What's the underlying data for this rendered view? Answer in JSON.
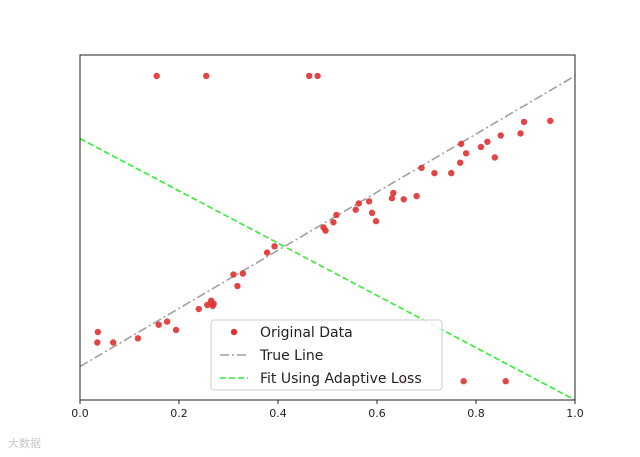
{
  "chart_data": {
    "type": "scatter",
    "title": "",
    "xlabel": "",
    "ylabel": "",
    "xlim": [
      0.0,
      1.0
    ],
    "ylim": [
      -0.6,
      2.7
    ],
    "xticks": [
      "0.0",
      "0.2",
      "0.4",
      "0.6",
      "0.8",
      "1.0"
    ],
    "yticks_visible": false,
    "grid": false,
    "legend": {
      "placement": "lower-center",
      "entries": [
        "Original Data",
        "True Line",
        "Fit Using Adaptive Loss"
      ]
    },
    "series": [
      {
        "name": "Original Data",
        "kind": "scatter",
        "color": "#e03030",
        "x": [
          0.035,
          0.036,
          0.067,
          0.117,
          0.159,
          0.176,
          0.194,
          0.24,
          0.257,
          0.265,
          0.268,
          0.27,
          0.31,
          0.318,
          0.329,
          0.378,
          0.393,
          0.492,
          0.496,
          0.512,
          0.518,
          0.557,
          0.563,
          0.584,
          0.59,
          0.598,
          0.63,
          0.633,
          0.654,
          0.68,
          0.69,
          0.716,
          0.75,
          0.768,
          0.77,
          0.78,
          0.81,
          0.823,
          0.838,
          0.85,
          0.89,
          0.897,
          0.95,
          0.155,
          0.255,
          0.463,
          0.48,
          0.655,
          0.775,
          0.86
        ],
        "y": [
          -0.05,
          0.05,
          -0.05,
          -0.01,
          0.12,
          0.15,
          0.07,
          0.27,
          0.31,
          0.35,
          0.3,
          0.32,
          0.6,
          0.49,
          0.61,
          0.81,
          0.87,
          1.05,
          1.02,
          1.1,
          1.17,
          1.22,
          1.28,
          1.3,
          1.19,
          1.11,
          1.33,
          1.38,
          1.32,
          1.35,
          1.62,
          1.57,
          1.57,
          1.67,
          1.85,
          1.76,
          1.82,
          1.87,
          1.72,
          1.93,
          1.95,
          2.06,
          2.07,
          2.5,
          2.5,
          2.5,
          2.5,
          -0.42,
          -0.42,
          -0.42
        ]
      },
      {
        "name": "True Line",
        "kind": "line",
        "style": "dashdot",
        "color": "#a0a0a0",
        "x": [
          0.0,
          1.0
        ],
        "y": [
          -0.28,
          2.5
        ]
      },
      {
        "name": "Fit Using Adaptive Loss",
        "kind": "line",
        "style": "dashed",
        "color": "#33ee33",
        "x": [
          0.0,
          1.0
        ],
        "y": [
          1.9,
          -0.6
        ]
      }
    ]
  },
  "watermark": "大数据"
}
